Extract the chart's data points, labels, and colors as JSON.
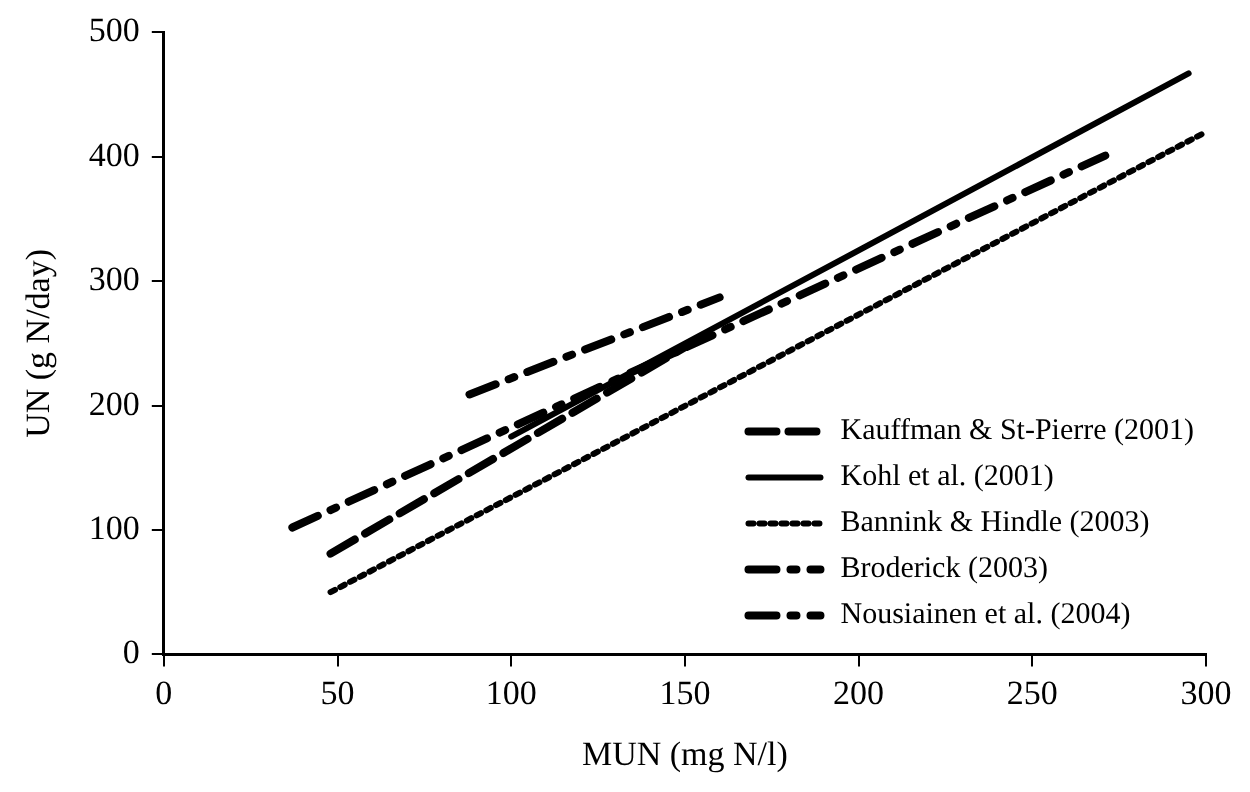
{
  "chart_data": {
    "type": "line",
    "xlabel": "MUN (mg N/l)",
    "ylabel": "UN (g N/day)",
    "xlim": [
      0,
      300
    ],
    "ylim": [
      0,
      500
    ],
    "xticks": [
      0,
      50,
      100,
      150,
      200,
      250,
      300
    ],
    "yticks": [
      0,
      100,
      200,
      300,
      400,
      500
    ],
    "grid": false,
    "legend": "bottom right",
    "marker": "none",
    "series": [
      {
        "name": "Kauffman & St-Pierre (2001)",
        "color": "#000000",
        "line_style": "dashed",
        "x": [
          48,
          155
        ],
        "values": [
          81,
          255
        ]
      },
      {
        "name": "Kohl et al. (2001)",
        "color": "#000000",
        "line_style": "solid",
        "x": [
          100,
          295
        ],
        "values": [
          175,
          467
        ]
      },
      {
        "name": "Bannink & Hindle (2003)",
        "color": "#000000",
        "line_style": "dotted",
        "x": [
          48,
          300
        ],
        "values": [
          50,
          420
        ]
      },
      {
        "name": "Broderick (2003)",
        "color": "#000000",
        "line_style": "dashdot",
        "x": [
          88,
          160
        ],
        "values": [
          209,
          287
        ]
      },
      {
        "name": "Nousiainen et al. (2004)",
        "color": "#000000",
        "line_style": "dashdot",
        "x": [
          37,
          271
        ],
        "values": [
          102,
          401
        ]
      }
    ]
  }
}
